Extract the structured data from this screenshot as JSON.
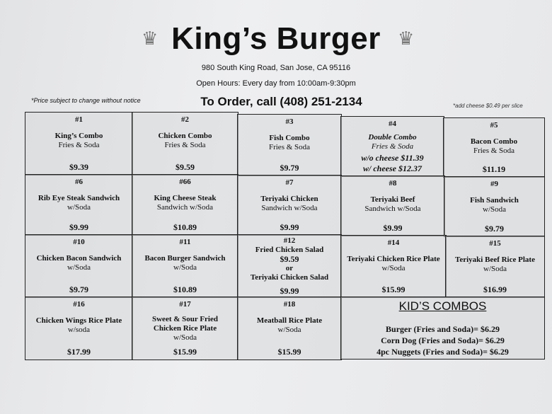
{
  "header": {
    "title": "King’s Burger",
    "crown_icon": "♛",
    "address": "980 South King Road, San Jose, CA 95116",
    "hours": "Open Hours: Every day from 10:00am-9:30pm",
    "order": "To Order, call (408) 251-2134",
    "price_note": "*Price subject to change without notice",
    "cheese_note": "*add cheese $0.49 per slice"
  },
  "items": {
    "i1": {
      "num": "#1",
      "name": "King’s Combo",
      "sub": "Fries & Soda",
      "price": "$9.39"
    },
    "i2": {
      "num": "#2",
      "name": "Chicken Combo",
      "sub": "Fries & Soda",
      "price": "$9.59"
    },
    "i3": {
      "num": "#3",
      "name": "Fish Combo",
      "sub": "Fries & Soda",
      "price": "$9.79"
    },
    "i4": {
      "num": "#4",
      "name": "Double Combo",
      "sub": "Fries & Soda",
      "price": "w/o cheese $11.39",
      "price2": "w/ cheese $12.37"
    },
    "i5": {
      "num": "#5",
      "name": "Bacon Combo",
      "sub": "Fries & Soda",
      "price": "$11.19"
    },
    "i6": {
      "num": "#6",
      "name": "Rib Eye Steak Sandwich",
      "sub": "w/Soda",
      "price": "$9.99"
    },
    "i66": {
      "num": "#66",
      "name": "King Cheese Steak",
      "sub": "Sandwich w/Soda",
      "price": "$10.89"
    },
    "i7": {
      "num": "#7",
      "name": "Teriyaki Chicken",
      "sub": "Sandwich w/Soda",
      "price": "$9.99"
    },
    "i8": {
      "num": "#8",
      "name": "Teriyaki Beef",
      "sub": "Sandwich w/Soda",
      "price": "$9.99"
    },
    "i9": {
      "num": "#9",
      "name": "Fish Sandwich",
      "sub": "w/Soda",
      "price": "$9.79"
    },
    "i10": {
      "num": "#10",
      "name": "Chicken Bacon Sandwich",
      "sub": "w/Soda",
      "price": "$9.79"
    },
    "i11": {
      "num": "#11",
      "name": "Bacon Burger Sandwich",
      "sub": "w/Soda",
      "price": "$10.89"
    },
    "i12": {
      "num": "#12",
      "name": "Fried Chicken Salad",
      "price": "$9.59",
      "or": "or",
      "name2": "Teriyaki Chicken Salad",
      "price2": "$9.99"
    },
    "i14": {
      "num": "#14",
      "name": "Teriyaki Chicken Rice Plate",
      "sub": "w/Soda",
      "price": "$15.99"
    },
    "i15": {
      "num": "#15",
      "name": "Teriyaki Beef Rice Plate",
      "sub": "w/Soda",
      "price": "$16.99"
    },
    "i16": {
      "num": "#16",
      "name": "Chicken Wings Rice Plate",
      "sub": "w/soda",
      "price": "$17.99"
    },
    "i17": {
      "num": "#17",
      "name": "Sweet & Sour Fried",
      "name2": "Chicken Rice Plate",
      "sub": "w/Soda",
      "price": "$15.99"
    },
    "i18": {
      "num": "#18",
      "name": "Meatball Rice Plate",
      "sub": "w/Soda",
      "price": "$15.99"
    }
  },
  "kids": {
    "title": "KID’S COMBOS",
    "items": [
      "Burger (Fries and Soda)= $6.29",
      "Corn Dog (Fries and Soda)= $6.29",
      "4pc Nuggets (Fries and Soda)= $6.29"
    ]
  }
}
